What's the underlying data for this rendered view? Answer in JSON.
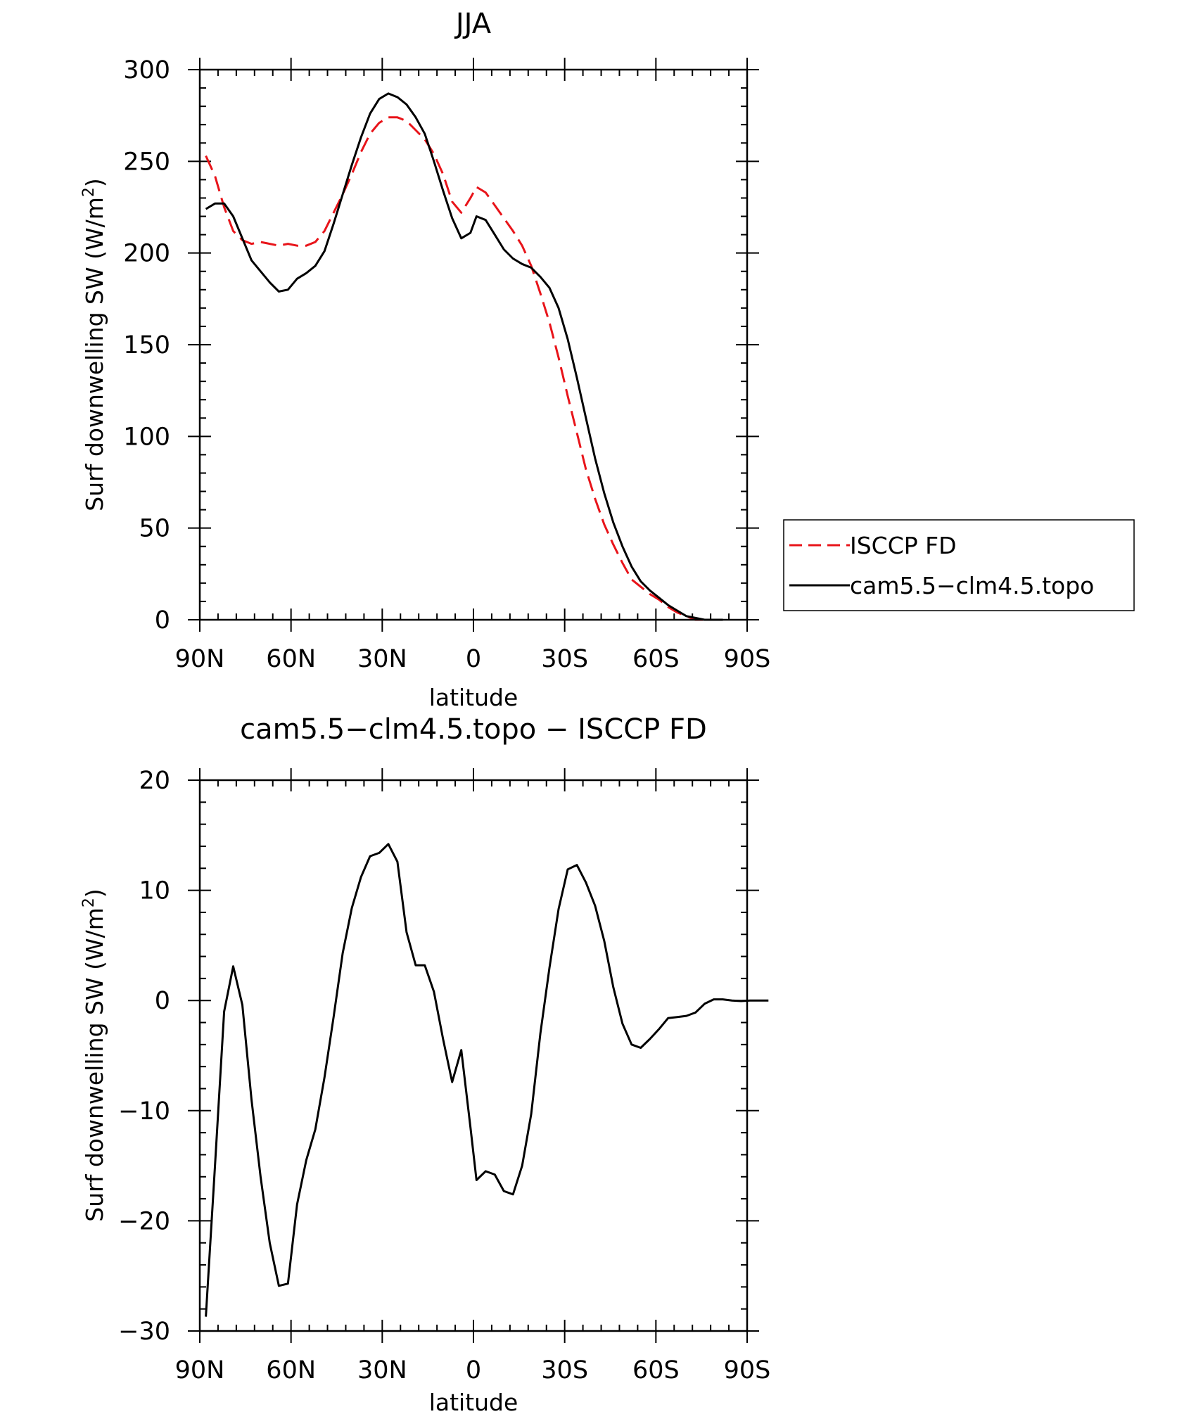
{
  "chart_data": [
    {
      "type": "line",
      "title": "JJA",
      "xlabel": "latitude",
      "ylabel": "Surf downwelling SW (W/m",
      "ylabel_sup": "2",
      "ylabel_close": ")",
      "xlim": [
        90,
        -90
      ],
      "ylim": [
        0,
        300
      ],
      "xticks": [
        90,
        60,
        30,
        0,
        -30,
        -60,
        -90
      ],
      "xtick_labels": [
        "90N",
        "60N",
        "30N",
        "0",
        "30S",
        "60S",
        "90S"
      ],
      "yticks": [
        0,
        50,
        100,
        150,
        200,
        250,
        300
      ],
      "ytick_labels": [
        "0",
        "50",
        "100",
        "150",
        "200",
        "250",
        "300"
      ],
      "legend": {
        "placement": "right"
      },
      "series": [
        {
          "name": "ISCCP FD",
          "color": "#e8141a",
          "dash": "dashed",
          "points": [
            [
              88,
              253
            ],
            [
              85,
              242
            ],
            [
              82,
              225
            ],
            [
              79,
              212
            ],
            [
              76,
              207
            ],
            [
              73,
              205
            ],
            [
              70,
              206
            ],
            [
              67,
              205
            ],
            [
              64,
              204
            ],
            [
              61,
              205
            ],
            [
              58,
              204
            ],
            [
              55,
              204
            ],
            [
              52,
              206
            ],
            [
              49,
              212
            ],
            [
              46,
              222
            ],
            [
              43,
              232
            ],
            [
              40,
              243
            ],
            [
              37,
              255
            ],
            [
              34,
              265
            ],
            [
              31,
              271
            ],
            [
              28,
              274
            ],
            [
              25,
              274
            ],
            [
              22,
              272
            ],
            [
              19,
              267
            ],
            [
              16,
              262
            ],
            [
              13,
              254
            ],
            [
              10,
              243
            ],
            [
              7,
              228
            ],
            [
              4,
              222
            ],
            [
              1,
              230
            ],
            [
              -1,
              236
            ],
            [
              -4,
              233
            ],
            [
              -7,
              226
            ],
            [
              -10,
              219
            ],
            [
              -13,
              212
            ],
            [
              -16,
              204
            ],
            [
              -19,
              193
            ],
            [
              -22,
              178
            ],
            [
              -25,
              162
            ],
            [
              -28,
              143
            ],
            [
              -31,
              122
            ],
            [
              -34,
              102
            ],
            [
              -37,
              82
            ],
            [
              -40,
              66
            ],
            [
              -43,
              52
            ],
            [
              -46,
              41
            ],
            [
              -49,
              31
            ],
            [
              -52,
              22
            ],
            [
              -55,
              18
            ],
            [
              -58,
              14
            ],
            [
              -61,
              11
            ],
            [
              -64,
              7
            ],
            [
              -67,
              4
            ],
            [
              -70,
              2
            ],
            [
              -73,
              0
            ],
            [
              -76,
              0
            ],
            [
              -79,
              0
            ],
            [
              -82,
              0
            ]
          ]
        },
        {
          "name": "cam5.5−clm4.5.topo",
          "color": "#000000",
          "dash": "solid",
          "points": [
            [
              88,
              224
            ],
            [
              85,
              227
            ],
            [
              82,
              227
            ],
            [
              79,
              220
            ],
            [
              76,
              208
            ],
            [
              73,
              196
            ],
            [
              70,
              190
            ],
            [
              67,
              184
            ],
            [
              64,
              179
            ],
            [
              61,
              180
            ],
            [
              58,
              186
            ],
            [
              55,
              189
            ],
            [
              52,
              193
            ],
            [
              49,
              201
            ],
            [
              46,
              216
            ],
            [
              43,
              232
            ],
            [
              40,
              248
            ],
            [
              37,
              263
            ],
            [
              34,
              276
            ],
            [
              31,
              284
            ],
            [
              28,
              287
            ],
            [
              25,
              285
            ],
            [
              22,
              281
            ],
            [
              19,
              274
            ],
            [
              16,
              265
            ],
            [
              13,
              250
            ],
            [
              10,
              234
            ],
            [
              7,
              219
            ],
            [
              4,
              208
            ],
            [
              1,
              211
            ],
            [
              -1,
              220
            ],
            [
              -4,
              218
            ],
            [
              -7,
              210
            ],
            [
              -10,
              202
            ],
            [
              -13,
              197
            ],
            [
              -16,
              194
            ],
            [
              -19,
              192
            ],
            [
              -22,
              187
            ],
            [
              -25,
              181
            ],
            [
              -28,
              170
            ],
            [
              -31,
              153
            ],
            [
              -34,
              132
            ],
            [
              -37,
              110
            ],
            [
              -40,
              88
            ],
            [
              -43,
              69
            ],
            [
              -46,
              53
            ],
            [
              -49,
              40
            ],
            [
              -52,
              29
            ],
            [
              -55,
              21
            ],
            [
              -58,
              16
            ],
            [
              -61,
              12
            ],
            [
              -64,
              8
            ],
            [
              -67,
              5
            ],
            [
              -70,
              2
            ],
            [
              -73,
              1
            ],
            [
              -76,
              0
            ],
            [
              -79,
              0
            ],
            [
              -82,
              0
            ]
          ]
        }
      ]
    },
    {
      "type": "line",
      "title": "cam5.5−clm4.5.topo − ISCCP FD",
      "xlabel": "latitude",
      "ylabel": "Surf downwelling SW (W/m",
      "ylabel_sup": "2",
      "ylabel_close": ")",
      "xlim": [
        90,
        -90
      ],
      "ylim": [
        -30,
        20
      ],
      "xticks": [
        90,
        60,
        30,
        0,
        -30,
        -60,
        -90
      ],
      "xtick_labels": [
        "90N",
        "60N",
        "30N",
        "0",
        "30S",
        "60S",
        "90S"
      ],
      "yticks": [
        -30,
        -20,
        -10,
        0,
        10,
        20
      ],
      "ytick_labels": [
        "−30",
        "−20",
        "−10",
        "0",
        "10",
        "20"
      ],
      "series": [
        {
          "color": "#000000",
          "dash": "solid",
          "points": [
            [
              88,
              -28.7
            ],
            [
              85,
              -15
            ],
            [
              82,
              -1
            ],
            [
              79,
              3.1
            ],
            [
              76,
              -0.4
            ],
            [
              73,
              -9
            ],
            [
              70,
              -16
            ],
            [
              67,
              -22
            ],
            [
              64,
              -25.9
            ],
            [
              61,
              -25.7
            ],
            [
              58,
              -18.5
            ],
            [
              55,
              -14.5
            ],
            [
              52,
              -11.7
            ],
            [
              49,
              -7
            ],
            [
              46,
              -1.5
            ],
            [
              43,
              4.3
            ],
            [
              40,
              8.4
            ],
            [
              37,
              11.2
            ],
            [
              34,
              13.1
            ],
            [
              31,
              13.4
            ],
            [
              28,
              14.2
            ],
            [
              25,
              12.6
            ],
            [
              22,
              6.2
            ],
            [
              19,
              3.2
            ],
            [
              16,
              3.2
            ],
            [
              13,
              0.8
            ],
            [
              10,
              -3.5
            ],
            [
              7,
              -7.4
            ],
            [
              4,
              -4.5
            ],
            [
              1,
              -11.5
            ],
            [
              -1,
              -16.3
            ],
            [
              -4,
              -15.5
            ],
            [
              -7,
              -15.8
            ],
            [
              -10,
              -17.3
            ],
            [
              -13,
              -17.6
            ],
            [
              -16,
              -15
            ],
            [
              -19,
              -10.3
            ],
            [
              -22,
              -3
            ],
            [
              -25,
              3
            ],
            [
              -28,
              8.3
            ],
            [
              -31,
              11.9
            ],
            [
              -34,
              12.3
            ],
            [
              -37,
              10.7
            ],
            [
              -40,
              8.6
            ],
            [
              -43,
              5.4
            ],
            [
              -46,
              1.2
            ],
            [
              -49,
              -2.1
            ],
            [
              -52,
              -4
            ],
            [
              -55,
              -4.3
            ],
            [
              -58,
              -3.5
            ],
            [
              -61,
              -2.6
            ],
            [
              -64,
              -1.6
            ],
            [
              -67,
              -1.5
            ],
            [
              -70,
              -1.4
            ],
            [
              -73,
              -1.1
            ],
            [
              -76,
              -0.3
            ],
            [
              -79,
              0.1
            ],
            [
              -82,
              0.1
            ],
            [
              -85,
              0
            ],
            [
              -88,
              -0.05
            ],
            [
              -91,
              0
            ],
            [
              -94,
              0
            ],
            [
              -97,
              0
            ]
          ]
        }
      ]
    }
  ]
}
